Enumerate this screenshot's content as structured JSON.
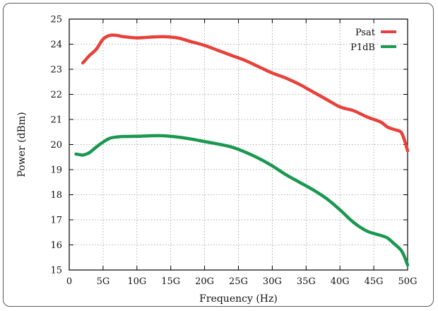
{
  "chart_data": {
    "type": "line",
    "title": "",
    "xlabel": "Frequency (Hz)",
    "ylabel": "Power (dBm)",
    "xlim": [
      0,
      50
    ],
    "ylim": [
      15,
      25
    ],
    "x_ticks": [
      {
        "value": 0,
        "label": "0"
      },
      {
        "value": 5,
        "label": "5G"
      },
      {
        "value": 10,
        "label": "10G"
      },
      {
        "value": 15,
        "label": "15G"
      },
      {
        "value": 20,
        "label": "20G"
      },
      {
        "value": 25,
        "label": "25G"
      },
      {
        "value": 30,
        "label": "30G"
      },
      {
        "value": 35,
        "label": "35G"
      },
      {
        "value": 40,
        "label": "40G"
      },
      {
        "value": 45,
        "label": "45G"
      },
      {
        "value": 50,
        "label": "50G"
      }
    ],
    "y_ticks": [
      15,
      16,
      17,
      18,
      19,
      20,
      21,
      22,
      23,
      24,
      25
    ],
    "grid": true,
    "legend_position": "top-right",
    "series": [
      {
        "name": "Psat",
        "color": "#e8413c",
        "x": [
          2,
          2.5,
          3,
          4,
          5,
          6,
          7,
          8,
          10,
          12,
          14,
          16,
          18,
          20,
          22,
          24,
          26,
          28,
          30,
          32,
          34,
          36,
          38,
          40,
          42,
          44,
          46,
          47,
          48,
          49,
          49.5,
          50
        ],
        "y": [
          23.25,
          23.4,
          23.55,
          23.8,
          24.2,
          24.35,
          24.35,
          24.3,
          24.25,
          24.28,
          24.3,
          24.25,
          24.1,
          23.95,
          23.75,
          23.55,
          23.35,
          23.1,
          22.85,
          22.65,
          22.4,
          22.1,
          21.8,
          21.5,
          21.35,
          21.1,
          20.9,
          20.7,
          20.6,
          20.5,
          20.2,
          19.75
        ]
      },
      {
        "name": "P1dB",
        "color": "#1a9850",
        "x": [
          1,
          1.5,
          2,
          2.5,
          3,
          4,
          5,
          6,
          7,
          8,
          10,
          12,
          14,
          16,
          18,
          20,
          22,
          24,
          26,
          28,
          30,
          32,
          34,
          36,
          38,
          40,
          42,
          44,
          46,
          47,
          48,
          49,
          49.5,
          50
        ],
        "y": [
          19.62,
          19.6,
          19.58,
          19.62,
          19.68,
          19.9,
          20.1,
          20.25,
          20.3,
          20.32,
          20.33,
          20.35,
          20.35,
          20.3,
          20.22,
          20.12,
          20.02,
          19.9,
          19.7,
          19.45,
          19.15,
          18.8,
          18.5,
          18.2,
          17.85,
          17.4,
          16.9,
          16.55,
          16.38,
          16.28,
          16.05,
          15.8,
          15.55,
          15.2
        ]
      }
    ]
  }
}
